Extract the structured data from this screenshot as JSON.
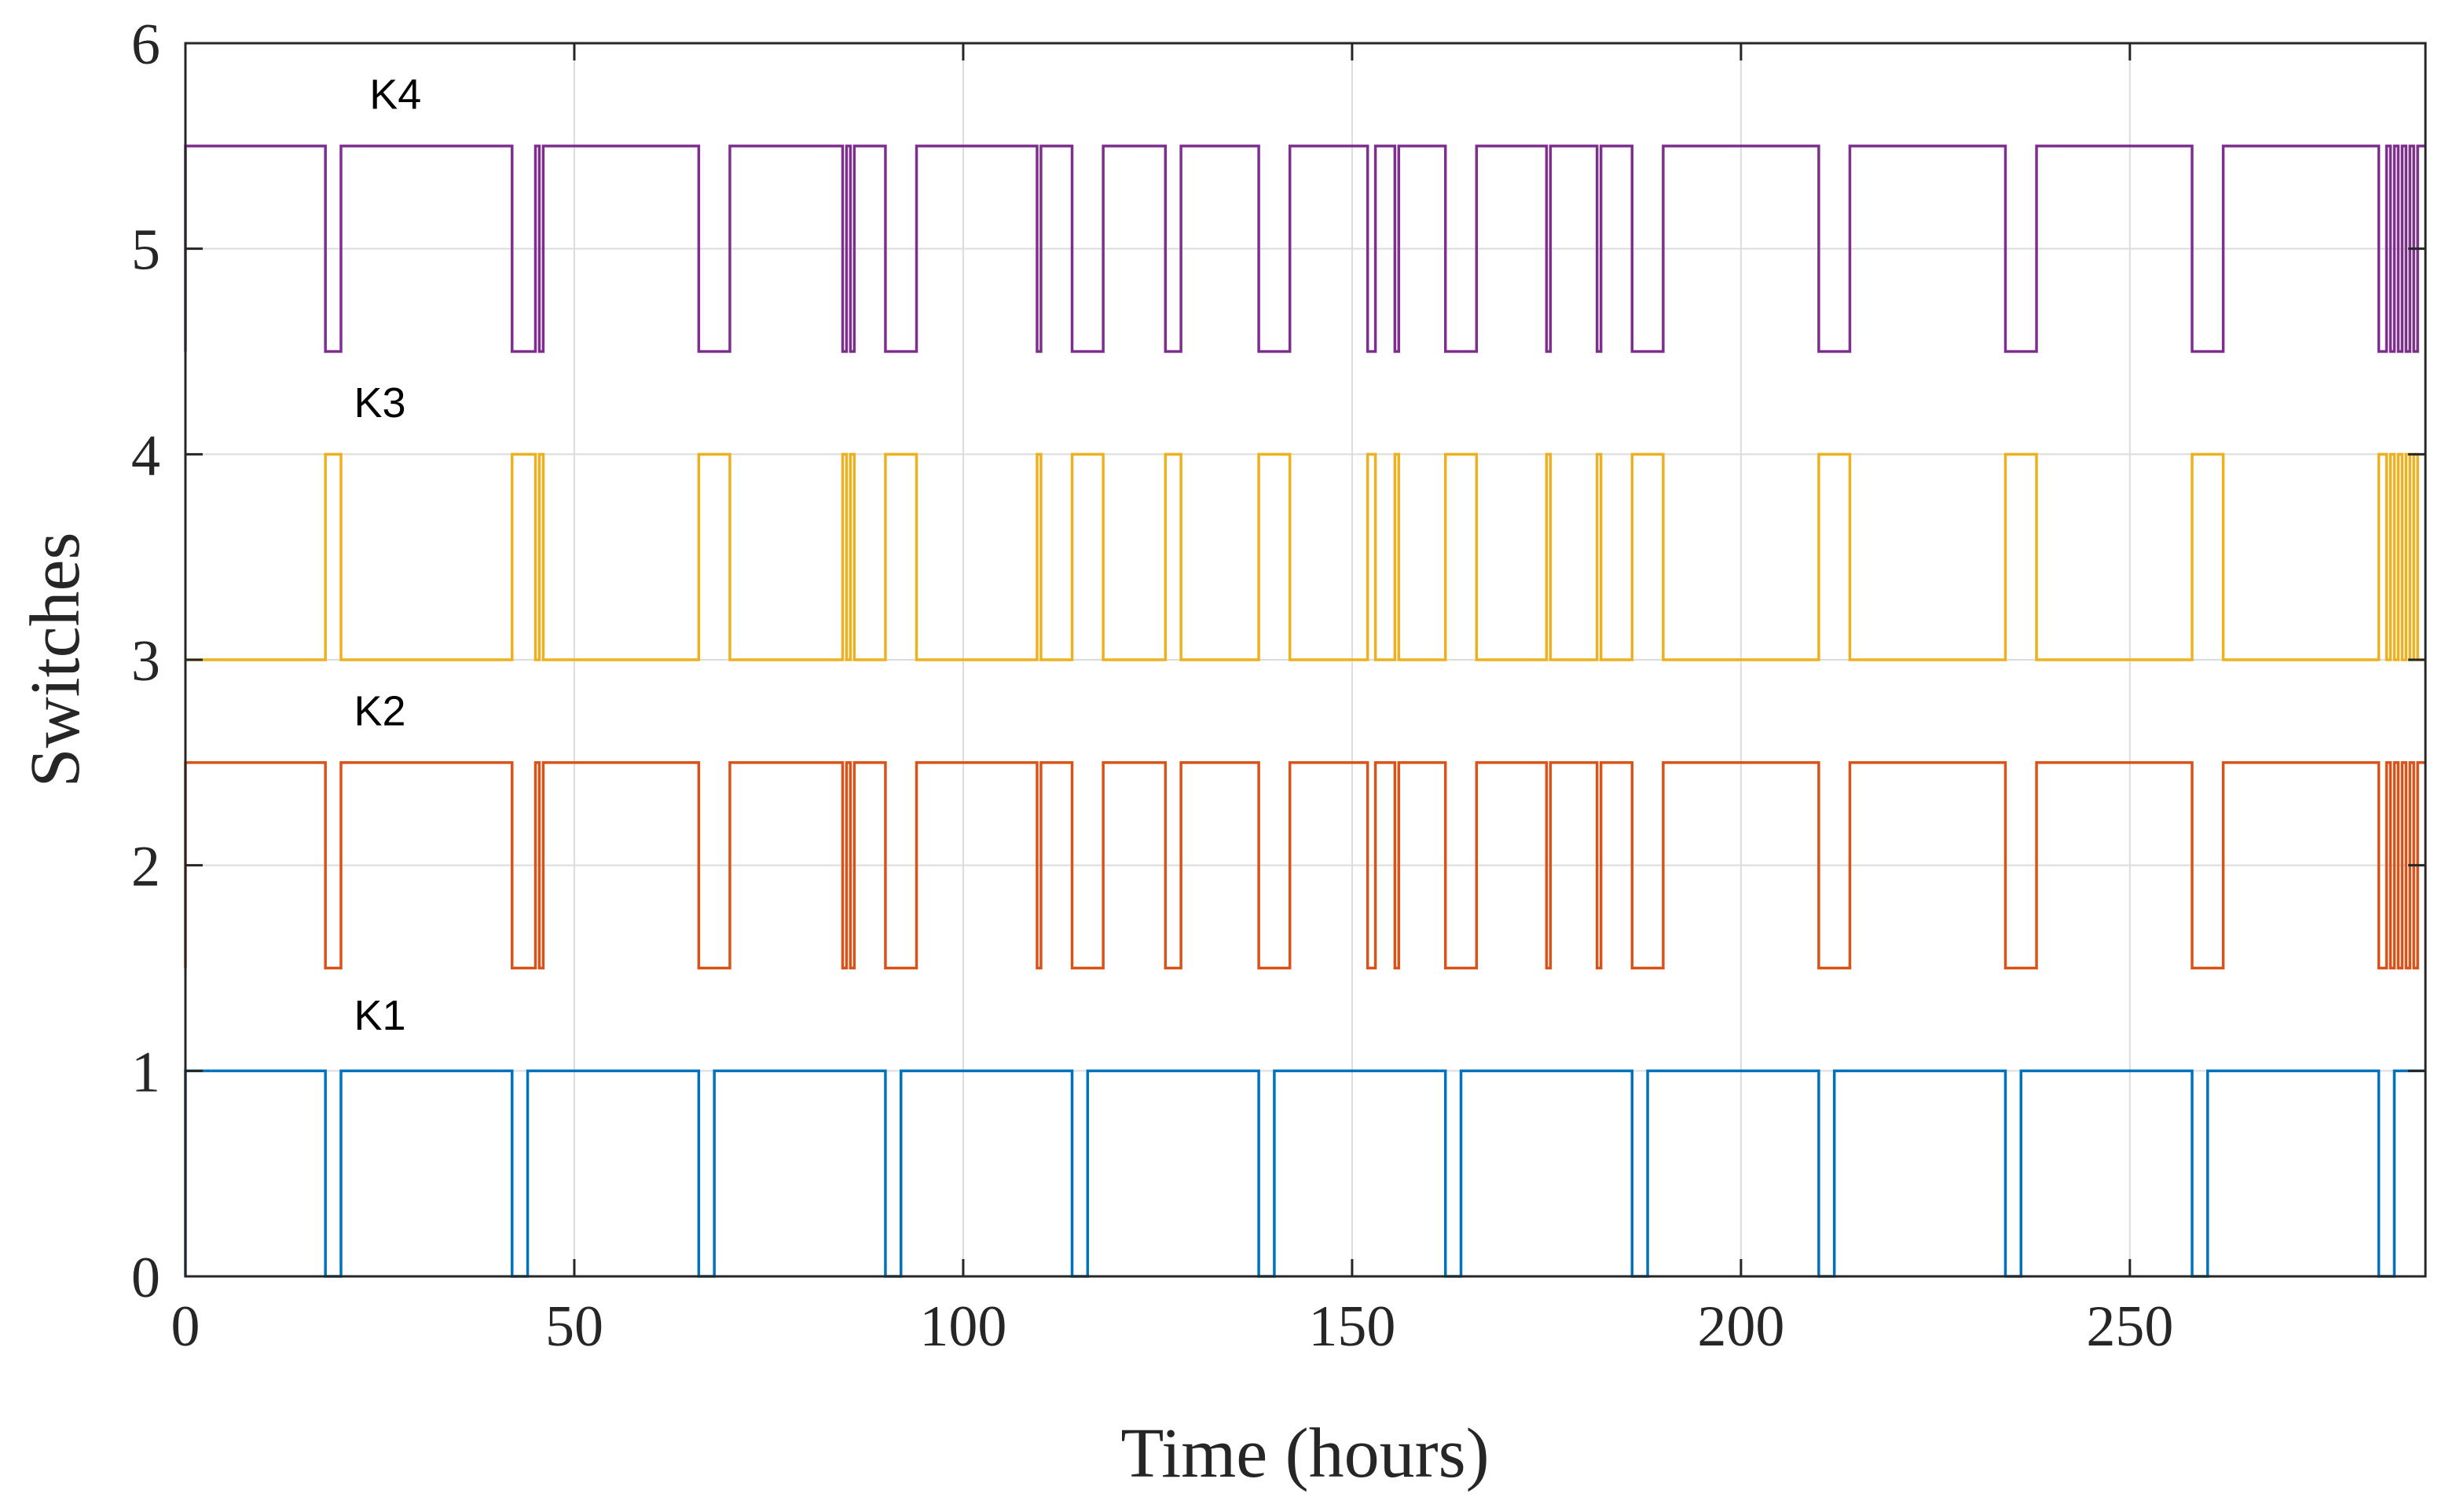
{
  "chart_data": {
    "type": "line",
    "subtype": "step",
    "title": "",
    "xlabel": "Time (hours)",
    "ylabel": "Switches",
    "xlim": [
      0,
      288
    ],
    "ylim": [
      0,
      6
    ],
    "xticks": [
      0,
      50,
      100,
      150,
      200,
      250
    ],
    "yticks": [
      0,
      1,
      2,
      3,
      4,
      5,
      6
    ],
    "grid": true,
    "legend": "none",
    "series": [
      {
        "name": "K1",
        "color": "#0072BD",
        "baseline": 0,
        "high": 1,
        "low": 0,
        "initial": "high",
        "transitions": [
          18,
          20,
          42,
          44,
          66,
          68,
          90,
          92,
          114,
          116,
          138,
          140,
          162,
          164,
          186,
          188,
          210,
          212,
          234,
          236,
          258,
          260,
          282,
          284
        ]
      },
      {
        "name": "K2",
        "color": "#D95319",
        "baseline": 1.5,
        "high": 2.5,
        "low": 1.5,
        "initial": "high",
        "transitions": [
          18,
          20,
          42,
          45,
          45.5,
          46,
          66,
          70,
          84.5,
          85,
          85.5,
          86,
          90,
          94,
          109.5,
          110,
          114,
          118,
          126,
          128,
          138,
          142,
          152,
          153,
          155.5,
          156,
          162,
          166,
          175,
          175.5,
          181.5,
          182,
          186,
          190,
          210,
          214,
          234,
          238,
          258,
          262,
          282,
          283,
          283.5,
          284,
          284.5,
          285,
          285.5,
          286,
          286.5,
          287
        ]
      },
      {
        "name": "K3",
        "color": "#EDB120",
        "baseline": 3,
        "high": 4,
        "low": 3,
        "initial": "low",
        "transitions": [
          18,
          20,
          42,
          45,
          45.5,
          46,
          66,
          70,
          84.5,
          85,
          85.5,
          86,
          90,
          94,
          109.5,
          110,
          114,
          118,
          126,
          128,
          138,
          142,
          152,
          153,
          155.5,
          156,
          162,
          166,
          175,
          175.5,
          181.5,
          182,
          186,
          190,
          210,
          214,
          234,
          238,
          258,
          262,
          282,
          283,
          283.5,
          284,
          284.5,
          285,
          285.5,
          286,
          286.5,
          287
        ]
      },
      {
        "name": "K4",
        "color": "#7E2F8E",
        "baseline": 4.5,
        "high": 5.5,
        "low": 4.5,
        "initial": "high",
        "transitions": [
          18,
          20,
          42,
          45,
          45.5,
          46,
          66,
          70,
          84.5,
          85,
          85.5,
          86,
          90,
          94,
          109.5,
          110,
          114,
          118,
          126,
          128,
          138,
          142,
          152,
          153,
          155.5,
          156,
          162,
          166,
          175,
          175.5,
          181.5,
          182,
          186,
          190,
          210,
          214,
          234,
          238,
          258,
          262,
          282,
          283,
          283.5,
          284,
          284.5,
          285,
          285.5,
          286,
          286.5,
          287
        ]
      }
    ],
    "annotations": [
      {
        "text": "K1",
        "x": 25,
        "y": 1.2
      },
      {
        "text": "K2",
        "x": 25,
        "y": 2.68
      },
      {
        "text": "K3",
        "x": 25,
        "y": 4.18
      },
      {
        "text": "K4",
        "x": 27,
        "y": 5.68
      }
    ]
  }
}
